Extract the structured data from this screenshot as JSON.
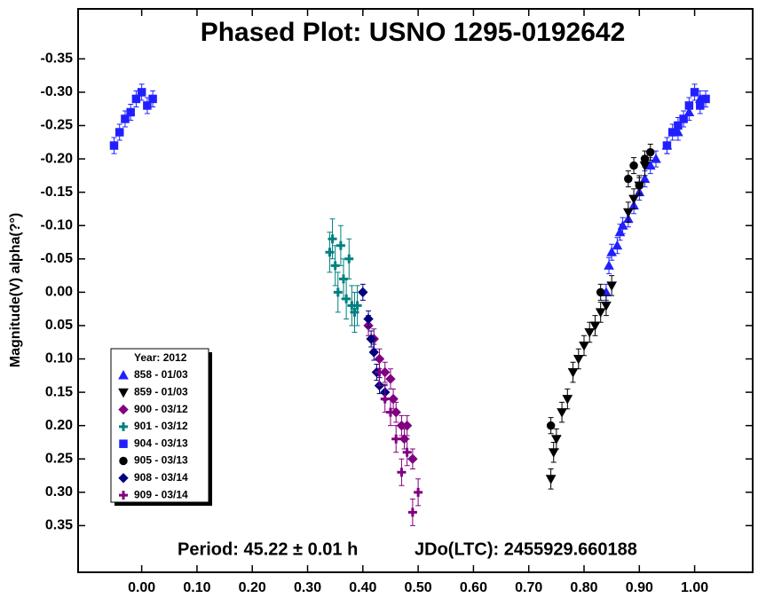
{
  "chart_data": {
    "type": "scatter",
    "title": "Phased Plot: USNO 1295-0192642",
    "ylabel": "Magnitude(V) alpha(?°)",
    "annotations": [
      "Period: 45.22 ± 0.01 h",
      "JDo(LTC): 2455929.660188"
    ],
    "legend_title": "Year: 2012",
    "legend_position": "lower left",
    "y_inverted": true,
    "xlim": [
      -0.115,
      1.105
    ],
    "ylim": [
      -0.425,
      0.42
    ],
    "xticks": [
      {
        "value": 0,
        "label": "0.00"
      },
      {
        "value": 0.1,
        "label": "0.10"
      },
      {
        "value": 0.2,
        "label": "0.20"
      },
      {
        "value": 0.3,
        "label": "0.30"
      },
      {
        "value": 0.4,
        "label": "0.40"
      },
      {
        "value": 0.5,
        "label": "0.50"
      },
      {
        "value": 0.6,
        "label": "0.60"
      },
      {
        "value": 0.7,
        "label": "0.70"
      },
      {
        "value": 0.8,
        "label": "0.80"
      },
      {
        "value": 0.9,
        "label": "0.90"
      },
      {
        "value": 1,
        "label": "1.00"
      }
    ],
    "yticks": [
      -0.35,
      {
        "value": -0.3,
        "label": "-0.30"
      },
      -0.25,
      {
        "value": -0.2,
        "label": "-0.20"
      },
      -0.15,
      {
        "value": -0.1,
        "label": "-0.10"
      },
      -0.05,
      {
        "value": 0,
        "label": "0.00"
      },
      0.05,
      {
        "value": 0.1,
        "label": "0.10"
      },
      0.15,
      {
        "value": 0.2,
        "label": "0.20"
      },
      0.25,
      {
        "value": 0.3,
        "label": "0.30"
      },
      0.35
    ],
    "series": [
      {
        "name": "858 - 01/03",
        "color": "#2020ff",
        "marker": "triangle-up",
        "yerr": 0.012,
        "x": [
          0.84,
          0.845,
          0.85,
          0.86,
          0.865,
          0.87,
          0.88,
          0.89,
          0.9,
          0.91,
          0.92,
          0.93,
          0.95,
          0.97,
          0.99,
          1.01
        ],
        "y": [
          0.0,
          -0.04,
          -0.06,
          -0.07,
          -0.09,
          -0.1,
          -0.11,
          -0.13,
          -0.15,
          -0.17,
          -0.19,
          -0.2,
          -0.22,
          -0.24,
          -0.27,
          -0.29
        ]
      },
      {
        "name": "859 - 01/03",
        "color": "#000000",
        "marker": "triangle-down",
        "yerr": 0.015,
        "x": [
          0.74,
          0.745,
          0.75,
          0.76,
          0.77,
          0.78,
          0.79,
          0.8,
          0.81,
          0.82,
          0.83,
          0.84,
          0.85,
          0.88,
          0.89,
          0.9,
          0.91
        ],
        "y": [
          0.28,
          0.24,
          0.22,
          0.18,
          0.16,
          0.12,
          0.1,
          0.08,
          0.06,
          0.05,
          0.03,
          0.02,
          -0.01,
          -0.12,
          -0.14,
          -0.16,
          -0.19
        ]
      },
      {
        "name": "900 - 03/12",
        "color": "#800080",
        "marker": "diamond",
        "yerr": 0.015,
        "x": [
          0.41,
          0.42,
          0.43,
          0.44,
          0.45,
          0.455,
          0.46,
          0.47,
          0.475,
          0.48,
          0.49
        ],
        "y": [
          0.05,
          0.07,
          0.1,
          0.12,
          0.13,
          0.16,
          0.18,
          0.2,
          0.22,
          0.2,
          0.25
        ]
      },
      {
        "name": "901 - 03/12",
        "color": "#008080",
        "marker": "plus",
        "yerr": 0.03,
        "x": [
          0.34,
          0.345,
          0.35,
          0.355,
          0.36,
          0.365,
          0.37,
          0.375,
          0.38,
          0.385,
          0.39
        ],
        "y": [
          -0.06,
          -0.08,
          -0.04,
          0.0,
          -0.07,
          -0.02,
          0.01,
          -0.05,
          0.02,
          0.03,
          0.02
        ]
      },
      {
        "name": "904 - 03/13",
        "color": "#2020ff",
        "marker": "square",
        "yerr": 0.012,
        "x": [
          -0.05,
          -0.04,
          -0.03,
          -0.02,
          -0.01,
          0.0,
          0.01,
          0.02,
          0.95,
          0.96,
          0.97,
          0.98,
          0.99,
          1.0,
          1.01,
          1.02
        ],
        "y": [
          -0.22,
          -0.24,
          -0.26,
          -0.27,
          -0.29,
          -0.3,
          -0.28,
          -0.29,
          -0.22,
          -0.24,
          -0.25,
          -0.26,
          -0.28,
          -0.3,
          -0.28,
          -0.29
        ]
      },
      {
        "name": "905 - 03/13",
        "color": "#000000",
        "marker": "circle",
        "yerr": 0.012,
        "x": [
          0.74,
          0.83,
          0.88,
          0.89,
          0.9,
          0.91,
          0.92
        ],
        "y": [
          0.2,
          0.0,
          -0.17,
          -0.19,
          -0.16,
          -0.2,
          -0.21
        ]
      },
      {
        "name": "908 - 03/14",
        "color": "#000080",
        "marker": "diamond",
        "yerr": 0.012,
        "x": [
          0.4,
          0.41,
          0.415,
          0.42,
          0.425,
          0.43,
          0.44
        ],
        "y": [
          0.0,
          0.04,
          0.07,
          0.09,
          0.12,
          0.14,
          0.15
        ]
      },
      {
        "name": "909 - 03/14",
        "color": "#800080",
        "marker": "plus",
        "yerr": 0.02,
        "x": [
          0.43,
          0.44,
          0.45,
          0.46,
          0.47,
          0.48,
          0.49,
          0.5
        ],
        "y": [
          0.12,
          0.16,
          0.18,
          0.22,
          0.27,
          0.24,
          0.33,
          0.3
        ]
      }
    ]
  }
}
